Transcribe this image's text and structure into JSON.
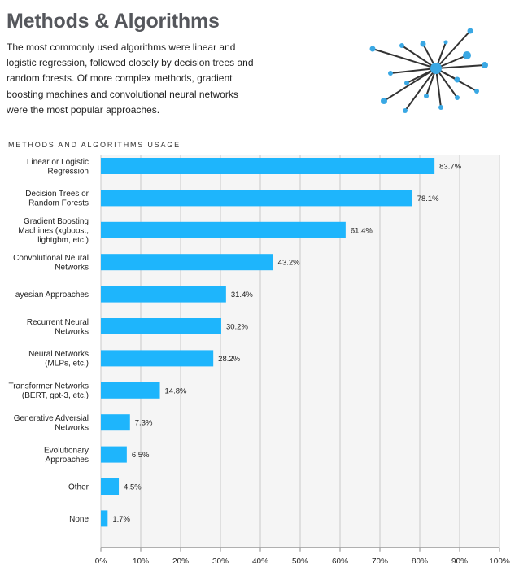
{
  "header": {
    "title": "Methods & Algorithms",
    "intro": "The most commonly used algorithms were linear and logistic regression, followed closely by decision trees and random forests. Of more complex methods, gradient boosting machines and convolutional neural networks were the most popular approaches."
  },
  "chart_title": "METHODS AND ALGORITHMS USAGE",
  "colors": {
    "bar": "#1eb5fc",
    "plot_bg": "#f5f5f5",
    "grid": "#c9c9c9",
    "node": "#3aa8e4",
    "edge": "#333333"
  },
  "chart_data": {
    "type": "bar",
    "orientation": "horizontal",
    "title": "METHODS AND ALGORITHMS USAGE",
    "categories": [
      [
        "Linear or Logistic",
        "Regression"
      ],
      [
        "Decision Trees or",
        "Random Forests"
      ],
      [
        "Gradient Boosting",
        "Machines (xgboost,",
        "lightgbm, etc.)"
      ],
      [
        "Convolutional Neural",
        "Networks"
      ],
      [
        "ayesian Approaches"
      ],
      [
        "Recurrent Neural",
        "Networks"
      ],
      [
        "Neural Networks",
        "(MLPs, etc.)"
      ],
      [
        "Transformer Networks",
        "(BERT, gpt-3, etc.)"
      ],
      [
        "Generative Adversial",
        "Networks"
      ],
      [
        "Evolutionary",
        "Approaches"
      ],
      [
        "Other"
      ],
      [
        "None"
      ]
    ],
    "values": [
      83.7,
      78.1,
      61.4,
      43.2,
      31.4,
      30.2,
      28.2,
      14.8,
      7.3,
      6.5,
      4.5,
      1.7
    ],
    "value_labels": [
      "83.7%",
      "78.1%",
      "61.4%",
      "43.2%",
      "31.4%",
      "30.2%",
      "28.2%",
      "14.8%",
      "7.3%",
      "6.5%",
      "4.5%",
      "1.7%"
    ],
    "xlim": [
      0,
      100
    ],
    "xticks": [
      0,
      10,
      20,
      30,
      40,
      50,
      60,
      70,
      80,
      90,
      100
    ],
    "xtick_labels": [
      "0%",
      "10%",
      "20%",
      "30%",
      "40%",
      "50%",
      "60%",
      "70%",
      "80%",
      "90%",
      "100%"
    ],
    "grid": true,
    "xlabel": "",
    "ylabel": ""
  }
}
